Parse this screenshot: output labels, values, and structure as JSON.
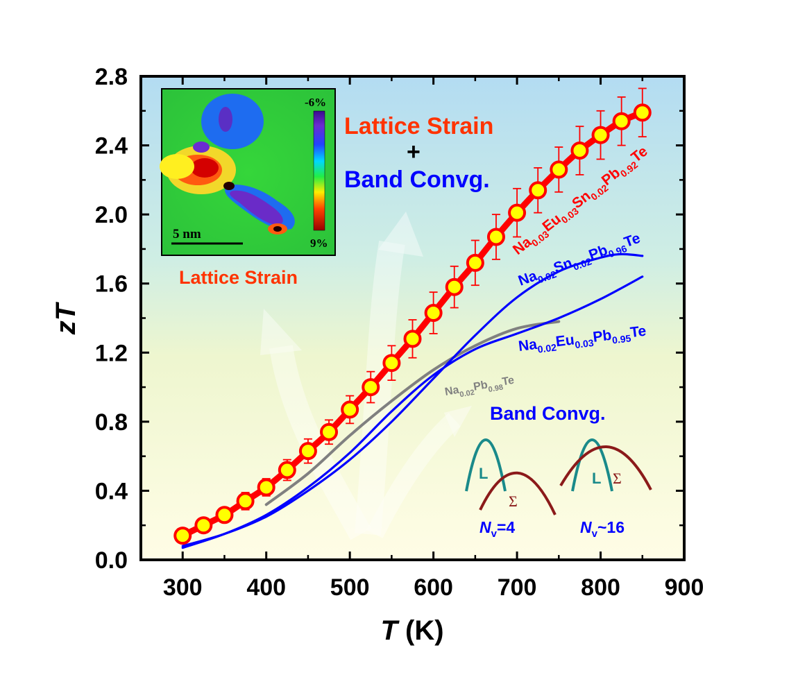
{
  "chart_data": {
    "type": "line",
    "xlabel": "T (K)",
    "xlabel_parts": {
      "symbol": "T",
      "unit": " (K)"
    },
    "ylabel": "zT",
    "ylabel_parts": {
      "prefix": "z",
      "symbol": "T"
    },
    "xlim": [
      250,
      900
    ],
    "ylim": [
      0.0,
      2.8
    ],
    "x_ticks": [
      "300",
      "400",
      "500",
      "600",
      "700",
      "800",
      "900"
    ],
    "y_ticks": [
      "0.0",
      "0.4",
      "0.8",
      "1.2",
      "1.6",
      "2.0",
      "2.4",
      "2.8"
    ],
    "grid": false,
    "series": [
      {
        "name": "Na0.03Eu0.03Sn0.02Pb0.92Te",
        "label_parts": [
          [
            "Na",
            ""
          ],
          [
            "0.03",
            "sub"
          ],
          [
            "Eu",
            ""
          ],
          [
            "0.03",
            "sub"
          ],
          [
            "Sn",
            ""
          ],
          [
            "0.02",
            "sub"
          ],
          [
            "Pb",
            ""
          ],
          [
            "0.92",
            "sub"
          ],
          [
            "Te",
            ""
          ]
        ],
        "color": "#ff0000",
        "marker_fill": "#ffff00",
        "x": [
          300,
          325,
          350,
          375,
          400,
          425,
          450,
          475,
          500,
          525,
          550,
          575,
          600,
          625,
          650,
          675,
          700,
          725,
          750,
          775,
          800,
          825,
          850
        ],
        "y": [
          0.14,
          0.2,
          0.26,
          0.34,
          0.42,
          0.52,
          0.63,
          0.74,
          0.87,
          1.0,
          1.14,
          1.28,
          1.43,
          1.58,
          1.72,
          1.87,
          2.01,
          2.14,
          2.26,
          2.37,
          2.46,
          2.54,
          2.59
        ],
        "error": [
          0.03,
          0.03,
          0.04,
          0.05,
          0.05,
          0.06,
          0.07,
          0.07,
          0.08,
          0.09,
          0.1,
          0.11,
          0.12,
          0.12,
          0.13,
          0.13,
          0.14,
          0.13,
          0.13,
          0.14,
          0.14,
          0.14,
          0.14
        ]
      },
      {
        "name": "Na0.02Sn0.02Pb0.96Te",
        "label_parts": [
          [
            "Na",
            ""
          ],
          [
            "0.02",
            "sub"
          ],
          [
            "Sn",
            ""
          ],
          [
            "0.02",
            "sub"
          ],
          [
            "Pb",
            ""
          ],
          [
            "0.96",
            "sub"
          ],
          [
            "Te",
            ""
          ]
        ],
        "color": "#0000ff",
        "x": [
          300,
          350,
          400,
          450,
          500,
          550,
          600,
          650,
          700,
          750,
          800,
          825,
          850
        ],
        "y": [
          0.08,
          0.15,
          0.25,
          0.4,
          0.58,
          0.8,
          1.05,
          1.3,
          1.52,
          1.67,
          1.75,
          1.77,
          1.76
        ]
      },
      {
        "name": "Na0.02Eu0.03Pb0.95Te",
        "label_parts": [
          [
            "Na",
            ""
          ],
          [
            "0.02",
            "sub"
          ],
          [
            "Eu",
            ""
          ],
          [
            "0.03",
            "sub"
          ],
          [
            "Pb",
            ""
          ],
          [
            "0.95",
            "sub"
          ],
          [
            "Te",
            ""
          ]
        ],
        "color": "#0000ff",
        "x": [
          300,
          350,
          400,
          450,
          500,
          550,
          600,
          650,
          700,
          750,
          800,
          850
        ],
        "y": [
          0.07,
          0.15,
          0.26,
          0.42,
          0.62,
          0.86,
          1.07,
          1.22,
          1.31,
          1.4,
          1.51,
          1.64
        ]
      },
      {
        "name": "Na0.02Pb0.98Te",
        "label_parts": [
          [
            "Na",
            ""
          ],
          [
            "0.02",
            "sub"
          ],
          [
            "Pb",
            ""
          ],
          [
            "0.98",
            "sub"
          ],
          [
            "Te",
            ""
          ]
        ],
        "color": "#808080",
        "x": [
          400,
          450,
          500,
          550,
          600,
          650,
          700,
          750
        ],
        "y": [
          0.32,
          0.5,
          0.72,
          0.92,
          1.1,
          1.24,
          1.34,
          1.38
        ]
      }
    ],
    "annotations": {
      "title_line1": "Lattice Strain",
      "plus": "+",
      "title_line2": "Band Convg.",
      "left_arrow_label": "Lattice Strain",
      "right_arrow_label": "Band Convg.",
      "band_L": "L",
      "band_sigma": "Σ",
      "nv_left": {
        "symbol": "N",
        "subscript": "v",
        "value": "=4"
      },
      "nv_right": {
        "symbol": "N",
        "subscript": "v",
        "value": "~16"
      }
    },
    "inset": {
      "colorbar_top": "-6%",
      "colorbar_bottom": "9%",
      "scale_bar": "5 nm"
    }
  },
  "colors": {
    "accent_red": "#ff2200",
    "title_red": "#ff3300",
    "blue": "#0000ff",
    "band_teal": "#1a8a8a",
    "band_maroon": "#8b1a1a",
    "bg_top": "#b9def2",
    "bg_mid": "#e4f3dc",
    "bg_bottom": "#fdfde0"
  }
}
